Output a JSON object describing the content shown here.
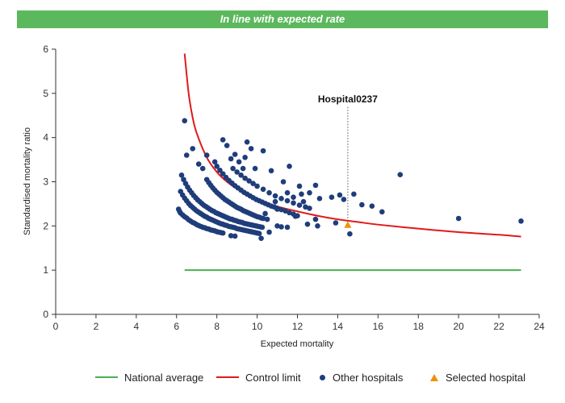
{
  "banner": {
    "text": "In line with expected rate",
    "color": "#5cb85c"
  },
  "colors": {
    "national": "#4caf50",
    "control": "#e01a1a",
    "others": "#1f3d7a",
    "selected": "#f0900a"
  },
  "chart_data": {
    "type": "scatter",
    "xlabel": "Expected mortality",
    "ylabel": "Standardised mortality ratio",
    "xlim": [
      0,
      24
    ],
    "ylim": [
      0,
      6
    ],
    "xticks": [
      "0",
      "2",
      "4",
      "6",
      "8",
      "10",
      "12",
      "14",
      "16",
      "18",
      "20",
      "22",
      "24"
    ],
    "yticks": [
      "0",
      "1",
      "2",
      "3",
      "4",
      "5",
      "6"
    ],
    "grid": false,
    "legend_position": "bottom",
    "legend": {
      "national": "National average",
      "control": "Control limit",
      "others": "Other hospitals",
      "selected": "Selected hospital"
    },
    "annotation": {
      "label": "Hospital0237",
      "x": 14.5,
      "y_top": 4.8
    },
    "national_average": {
      "y": 1.0,
      "x": [
        6.4,
        23.1
      ]
    },
    "control_limit": {
      "x": [
        6.4,
        6.6,
        6.8,
        7.0,
        7.5,
        8.0,
        8.5,
        9.0,
        10.0,
        11.0,
        12.0,
        13.0,
        14.0,
        15.0,
        16.0,
        18.0,
        20.0,
        22.0,
        23.1
      ],
      "y": [
        5.9,
        5.0,
        4.45,
        4.1,
        3.55,
        3.22,
        3.0,
        2.84,
        2.6,
        2.44,
        2.33,
        2.23,
        2.15,
        2.09,
        2.03,
        1.94,
        1.86,
        1.8,
        1.76
      ]
    },
    "series": [
      {
        "name": "Other hospitals",
        "points": [
          [
            6.1,
            2.38
          ],
          [
            6.15,
            2.33
          ],
          [
            6.2,
            2.29
          ],
          [
            6.3,
            2.25
          ],
          [
            6.4,
            2.21
          ],
          [
            6.5,
            2.18
          ],
          [
            6.6,
            2.14
          ],
          [
            6.7,
            2.11
          ],
          [
            6.8,
            2.08
          ],
          [
            6.9,
            2.06
          ],
          [
            7.0,
            2.03
          ],
          [
            7.1,
            2.01
          ],
          [
            7.2,
            1.99
          ],
          [
            7.3,
            1.97
          ],
          [
            7.4,
            1.96
          ],
          [
            7.5,
            1.94
          ],
          [
            7.6,
            1.93
          ],
          [
            7.7,
            1.91
          ],
          [
            7.8,
            1.9
          ],
          [
            7.9,
            1.89
          ],
          [
            8.0,
            1.87
          ],
          [
            8.1,
            1.86
          ],
          [
            8.2,
            1.85
          ],
          [
            8.3,
            1.84
          ],
          [
            8.7,
            1.78
          ],
          [
            8.9,
            1.77
          ],
          [
            6.2,
            2.78
          ],
          [
            6.3,
            2.7
          ],
          [
            6.4,
            2.63
          ],
          [
            6.5,
            2.57
          ],
          [
            6.6,
            2.51
          ],
          [
            6.7,
            2.46
          ],
          [
            6.8,
            2.42
          ],
          [
            6.9,
            2.38
          ],
          [
            7.0,
            2.34
          ],
          [
            7.1,
            2.31
          ],
          [
            7.2,
            2.28
          ],
          [
            7.3,
            2.25
          ],
          [
            7.4,
            2.22
          ],
          [
            7.5,
            2.2
          ],
          [
            7.6,
            2.17
          ],
          [
            7.7,
            2.15
          ],
          [
            7.8,
            2.13
          ],
          [
            7.9,
            2.11
          ],
          [
            8.0,
            2.09
          ],
          [
            8.1,
            2.07
          ],
          [
            8.2,
            2.05
          ],
          [
            8.3,
            2.04
          ],
          [
            8.4,
            2.02
          ],
          [
            8.5,
            2.01
          ],
          [
            8.6,
            1.99
          ],
          [
            8.7,
            1.98
          ],
          [
            8.8,
            1.97
          ],
          [
            8.9,
            1.96
          ],
          [
            9.0,
            1.94
          ],
          [
            9.1,
            1.93
          ],
          [
            9.2,
            1.92
          ],
          [
            9.3,
            1.91
          ],
          [
            9.4,
            1.9
          ],
          [
            9.5,
            1.89
          ],
          [
            9.6,
            1.88
          ],
          [
            9.7,
            1.87
          ],
          [
            9.8,
            1.86
          ],
          [
            9.9,
            1.85
          ],
          [
            10.0,
            1.84
          ],
          [
            10.1,
            1.83
          ],
          [
            10.2,
            1.72
          ],
          [
            10.6,
            1.86
          ],
          [
            6.25,
            3.15
          ],
          [
            6.35,
            3.05
          ],
          [
            6.45,
            2.96
          ],
          [
            6.55,
            2.88
          ],
          [
            6.65,
            2.81
          ],
          [
            6.75,
            2.75
          ],
          [
            6.85,
            2.69
          ],
          [
            6.95,
            2.64
          ],
          [
            7.05,
            2.59
          ],
          [
            7.15,
            2.55
          ],
          [
            7.25,
            2.51
          ],
          [
            7.35,
            2.47
          ],
          [
            7.45,
            2.44
          ],
          [
            7.55,
            2.41
          ],
          [
            7.65,
            2.38
          ],
          [
            7.75,
            2.35
          ],
          [
            7.85,
            2.33
          ],
          [
            7.95,
            2.3
          ],
          [
            8.05,
            2.28
          ],
          [
            8.15,
            2.26
          ],
          [
            8.25,
            2.24
          ],
          [
            8.35,
            2.22
          ],
          [
            8.45,
            2.2
          ],
          [
            8.55,
            2.18
          ],
          [
            8.65,
            2.16
          ],
          [
            8.75,
            2.15
          ],
          [
            8.85,
            2.13
          ],
          [
            8.95,
            2.12
          ],
          [
            9.05,
            2.1
          ],
          [
            9.15,
            2.09
          ],
          [
            9.25,
            2.08
          ],
          [
            9.35,
            2.06
          ],
          [
            9.45,
            2.05
          ],
          [
            9.55,
            2.04
          ],
          [
            9.65,
            2.03
          ],
          [
            9.75,
            2.02
          ],
          [
            9.85,
            2.01
          ],
          [
            9.95,
            2.0
          ],
          [
            10.05,
            1.99
          ],
          [
            10.15,
            1.98
          ],
          [
            10.25,
            1.97
          ],
          [
            7.5,
            3.05
          ],
          [
            7.6,
            2.98
          ],
          [
            7.7,
            2.92
          ],
          [
            7.8,
            2.86
          ],
          [
            7.9,
            2.81
          ],
          [
            8.0,
            2.76
          ],
          [
            8.1,
            2.72
          ],
          [
            8.2,
            2.68
          ],
          [
            8.3,
            2.64
          ],
          [
            8.4,
            2.6
          ],
          [
            8.5,
            2.57
          ],
          [
            8.6,
            2.54
          ],
          [
            8.7,
            2.51
          ],
          [
            8.8,
            2.48
          ],
          [
            8.9,
            2.45
          ],
          [
            9.0,
            2.42
          ],
          [
            9.1,
            2.4
          ],
          [
            9.2,
            2.38
          ],
          [
            9.3,
            2.35
          ],
          [
            9.4,
            2.33
          ],
          [
            9.5,
            2.31
          ],
          [
            9.6,
            2.29
          ],
          [
            9.7,
            2.27
          ],
          [
            9.8,
            2.25
          ],
          [
            9.9,
            2.23
          ],
          [
            10.0,
            2.21
          ],
          [
            10.1,
            2.2
          ],
          [
            10.2,
            2.18
          ],
          [
            10.3,
            2.17
          ],
          [
            10.5,
            2.15
          ],
          [
            11.0,
            2.0
          ],
          [
            11.2,
            1.98
          ],
          [
            11.5,
            1.97
          ],
          [
            8.0,
            3.35
          ],
          [
            8.15,
            3.26
          ],
          [
            8.3,
            3.18
          ],
          [
            8.45,
            3.1
          ],
          [
            8.6,
            3.03
          ],
          [
            8.75,
            2.97
          ],
          [
            8.9,
            2.91
          ],
          [
            9.05,
            2.86
          ],
          [
            9.2,
            2.81
          ],
          [
            9.35,
            2.76
          ],
          [
            9.5,
            2.72
          ],
          [
            9.65,
            2.68
          ],
          [
            9.8,
            2.64
          ],
          [
            9.95,
            2.6
          ],
          [
            10.1,
            2.57
          ],
          [
            10.25,
            2.54
          ],
          [
            10.4,
            2.51
          ],
          [
            10.55,
            2.48
          ],
          [
            10.7,
            2.45
          ],
          [
            10.85,
            2.43
          ],
          [
            11.0,
            2.4
          ],
          [
            11.2,
            2.37
          ],
          [
            11.4,
            2.34
          ],
          [
            11.6,
            2.3
          ],
          [
            11.8,
            2.27
          ],
          [
            12.0,
            2.23
          ],
          [
            12.5,
            2.04
          ],
          [
            13.0,
            2.0
          ],
          [
            8.8,
            3.3
          ],
          [
            9.0,
            3.22
          ],
          [
            9.2,
            3.15
          ],
          [
            9.4,
            3.08
          ],
          [
            9.6,
            3.02
          ],
          [
            9.8,
            2.96
          ],
          [
            10.0,
            2.9
          ],
          [
            10.3,
            2.83
          ],
          [
            10.6,
            2.75
          ],
          [
            10.9,
            2.68
          ],
          [
            11.2,
            2.62
          ],
          [
            11.5,
            2.57
          ],
          [
            11.8,
            2.52
          ],
          [
            12.1,
            2.47
          ],
          [
            12.4,
            2.43
          ],
          [
            6.4,
            4.38
          ],
          [
            6.8,
            3.75
          ],
          [
            6.5,
            3.6
          ],
          [
            7.1,
            3.4
          ],
          [
            7.3,
            3.3
          ],
          [
            7.5,
            3.6
          ],
          [
            7.9,
            3.45
          ],
          [
            8.3,
            3.95
          ],
          [
            8.5,
            3.82
          ],
          [
            8.7,
            3.52
          ],
          [
            8.9,
            3.62
          ],
          [
            9.1,
            3.45
          ],
          [
            9.4,
            3.55
          ],
          [
            9.5,
            3.9
          ],
          [
            9.7,
            3.75
          ],
          [
            9.9,
            3.3
          ],
          [
            9.3,
            3.3
          ],
          [
            10.3,
            3.7
          ],
          [
            10.7,
            3.25
          ],
          [
            11.3,
            3.0
          ],
          [
            11.6,
            3.35
          ],
          [
            11.5,
            2.75
          ],
          [
            11.8,
            2.65
          ],
          [
            12.1,
            2.9
          ],
          [
            12.2,
            2.72
          ],
          [
            12.6,
            2.75
          ],
          [
            12.9,
            2.92
          ],
          [
            13.1,
            2.62
          ],
          [
            12.3,
            2.55
          ],
          [
            12.9,
            2.15
          ],
          [
            13.7,
            2.65
          ],
          [
            14.1,
            2.7
          ],
          [
            14.3,
            2.6
          ],
          [
            14.8,
            2.72
          ],
          [
            15.2,
            2.48
          ],
          [
            15.7,
            2.45
          ],
          [
            16.2,
            2.32
          ],
          [
            17.1,
            3.16
          ],
          [
            20.0,
            2.17
          ],
          [
            23.1,
            2.11
          ],
          [
            13.9,
            2.07
          ],
          [
            14.6,
            1.82
          ],
          [
            11.0,
            2.38
          ],
          [
            11.9,
            2.22
          ],
          [
            12.6,
            2.4
          ],
          [
            10.9,
            2.55
          ],
          [
            10.4,
            2.28
          ]
        ]
      },
      {
        "name": "Selected hospital",
        "points": [
          [
            14.5,
            2.03
          ]
        ]
      }
    ]
  }
}
